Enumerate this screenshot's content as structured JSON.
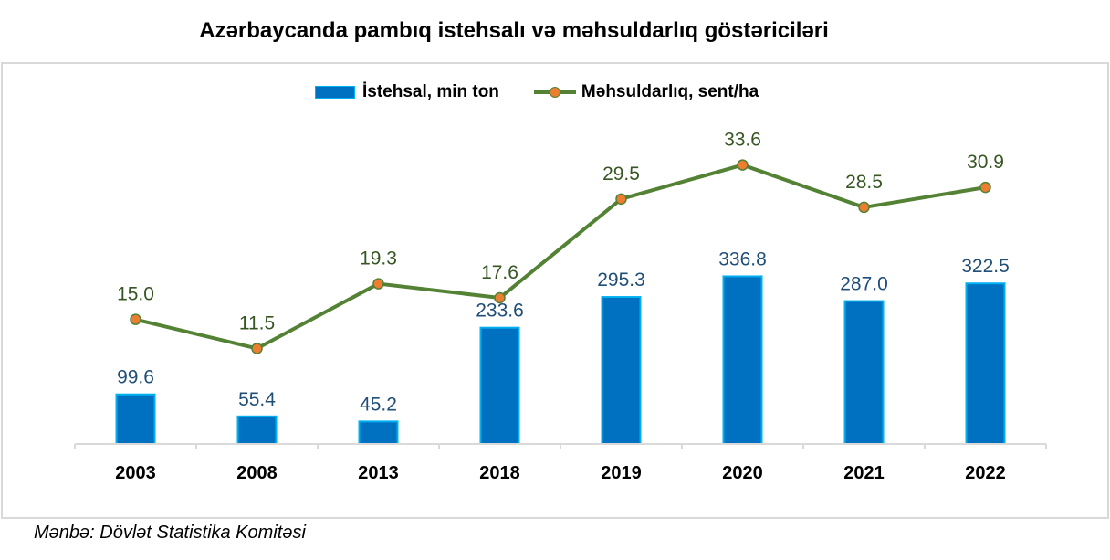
{
  "chart_data": {
    "type": "bar",
    "title": "Azərbaycanda pambıq istehsalı və məhsuldarlıq göstəriciləri",
    "xlabel": "",
    "ylabel": "",
    "categories": [
      "2003",
      "2008",
      "2013",
      "2018",
      "2019",
      "2020",
      "2021",
      "2022"
    ],
    "series": [
      {
        "name": "İstehsal, min ton",
        "type": "bar",
        "axis": "primary",
        "values": [
          99.6,
          55.4,
          45.2,
          233.6,
          295.3,
          336.8,
          287.0,
          322.5
        ],
        "labels": [
          "99.6",
          "55.4",
          "45.2",
          "233.6",
          "295.3",
          "336.8",
          "287.0",
          "322.5"
        ],
        "color": "#0070c0",
        "border_color": "#00b0f0",
        "label_color": "#1f4e79"
      },
      {
        "name": "Məhsuldarlıq, sent/ha",
        "type": "line",
        "axis": "secondary",
        "values": [
          15.0,
          11.5,
          19.3,
          17.6,
          29.5,
          33.6,
          28.5,
          30.9
        ],
        "labels": [
          "15.0",
          "11.5",
          "19.3",
          "17.6",
          "29.5",
          "33.6",
          "28.5",
          "30.9"
        ],
        "color": "#548235",
        "marker_color": "#ed7d31",
        "label_color": "#375623"
      }
    ],
    "ylim": [
      0,
      400
    ],
    "y2lim": [
      0,
      44
    ],
    "grid": false,
    "legend": "top-center",
    "source": "Mənbə: Dövlət Statistika Komitəsi"
  }
}
